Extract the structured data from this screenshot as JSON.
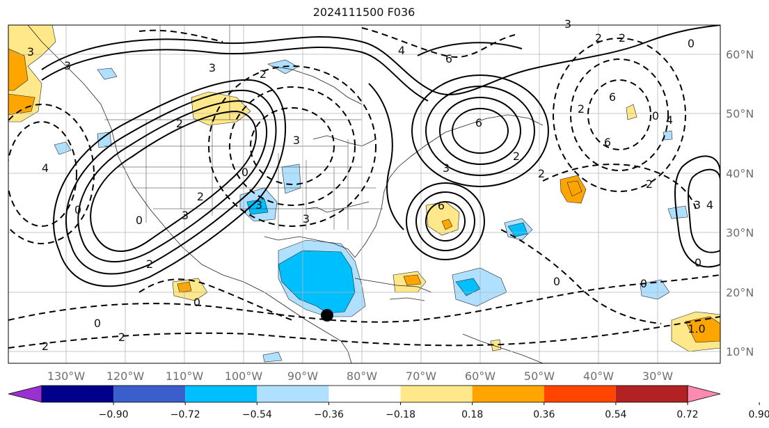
{
  "title": "2024111500 F036",
  "lon_labels": [
    "130°W",
    "120°W",
    "110°W",
    "100°W",
    "90°W",
    "80°W",
    "70°W",
    "60°W",
    "50°W",
    "40°W",
    "30°W"
  ],
  "lat_labels": [
    "60°N",
    "50°N",
    "40°N",
    "30°N",
    "20°N",
    "10°N"
  ],
  "colorbar": {
    "ticks": [
      "−0.90",
      "−0.72",
      "−0.54",
      "−0.36",
      "−0.18",
      "0.18",
      "0.36",
      "0.54",
      "0.72",
      "0.90"
    ],
    "colors": [
      "#9b30d0",
      "#00008b",
      "#3a5fcd",
      "#00bfff",
      "#b0e0ff",
      "#ffffff",
      "#ffe88a",
      "#ffa500",
      "#ff4500",
      "#b22222",
      "#ff8ab0"
    ]
  },
  "contour_labels": [
    "3",
    "3",
    "2",
    "2",
    "0",
    "2",
    "3",
    "3",
    "3",
    "6",
    "4",
    "6",
    "0",
    "2",
    "0",
    "6",
    "4",
    "3",
    "6",
    "2",
    "2",
    "4",
    "3",
    "3",
    "0",
    "2",
    "0",
    "2",
    "2",
    "3",
    "0",
    "0",
    "0",
    "2",
    "2",
    "6",
    "0",
    "0",
    "1.0",
    "3",
    "4",
    "2"
  ],
  "storm_marker": {
    "lat": 16,
    "lon": -86
  }
}
